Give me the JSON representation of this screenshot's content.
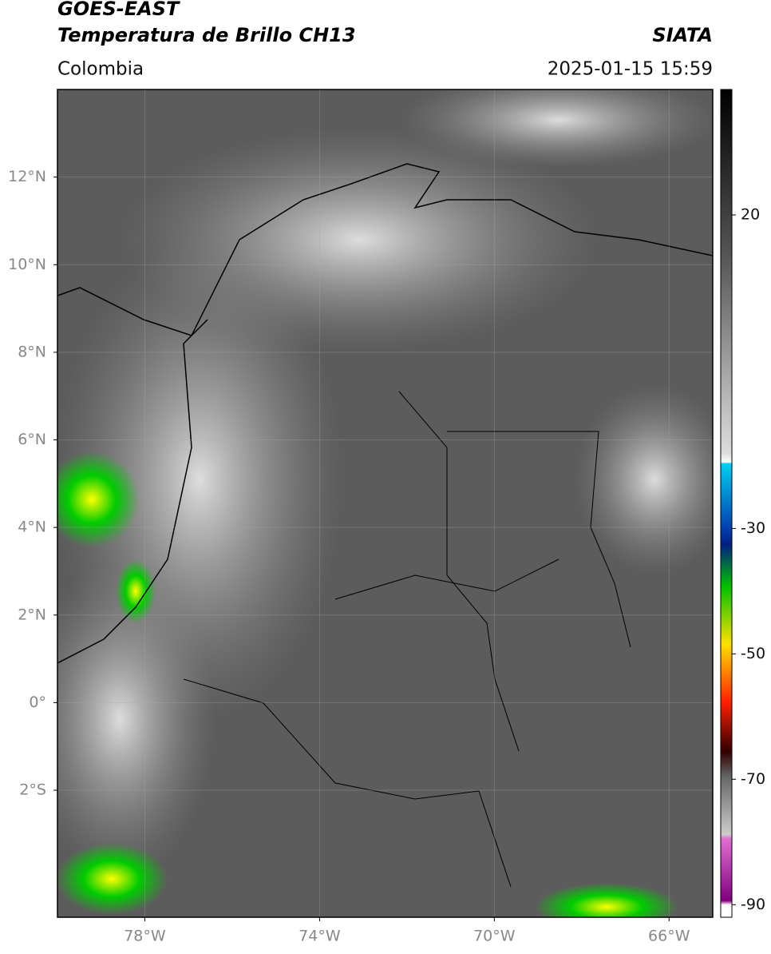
{
  "header": {
    "title": "GOES-EAST",
    "subtitle": "Temperatura de Brillo CH13",
    "source": "SIATA",
    "region": "Colombia",
    "datetime": "2025-01-15 15:59"
  },
  "map": {
    "xlim": [
      -80,
      -65
    ],
    "ylim": [
      14,
      -4.9
    ],
    "xticks": [
      {
        "value": -78,
        "label": "78°W"
      },
      {
        "value": -74,
        "label": "74°W"
      },
      {
        "value": -70,
        "label": "70°W"
      },
      {
        "value": -66,
        "label": "66°W"
      }
    ],
    "yticks": [
      {
        "value": 12,
        "label": "12°N"
      },
      {
        "value": 10,
        "label": "10°N"
      },
      {
        "value": 8,
        "label": "8°N"
      },
      {
        "value": 6,
        "label": "6°N"
      },
      {
        "value": 4,
        "label": "4°N"
      },
      {
        "value": 2,
        "label": "2°N"
      },
      {
        "value": 0,
        "label": "0°"
      },
      {
        "value": -2,
        "label": "2°S"
      }
    ]
  },
  "colorbar": {
    "lim": [
      40,
      -92
    ],
    "ticks": [
      20,
      -30,
      -50,
      -70,
      -90
    ]
  }
}
